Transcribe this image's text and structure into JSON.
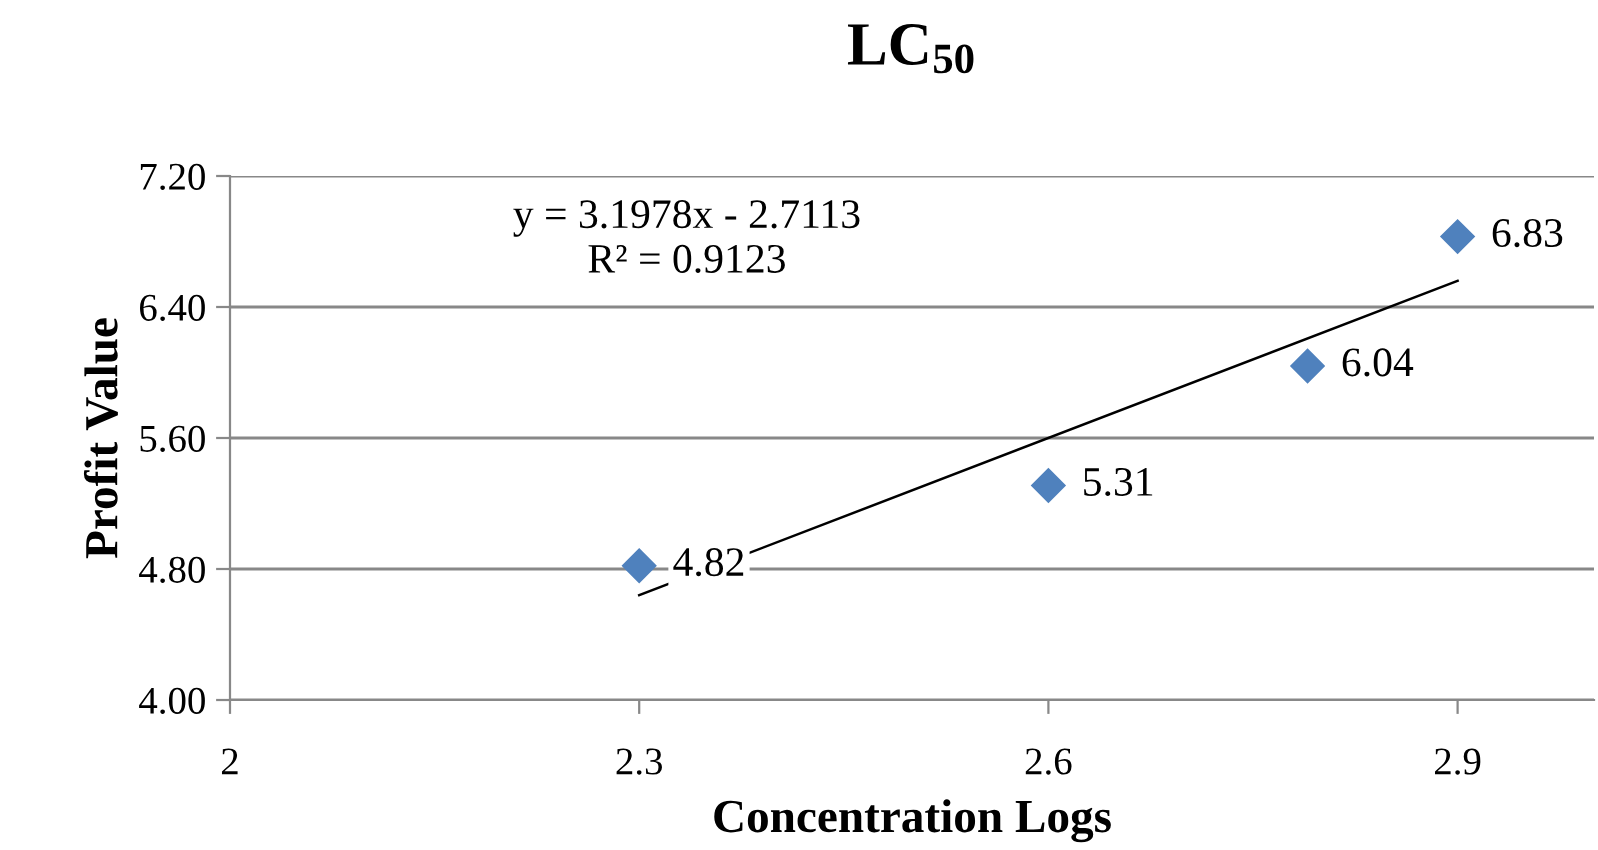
{
  "chart_data": {
    "type": "scatter",
    "title": "LC$_{50}$",
    "xlabel": "Concentration Logs",
    "ylabel": "Profit Value",
    "series": [
      {
        "color": "#4f81bd",
        "x": [
          2.3,
          2.6,
          2.79,
          2.9
        ],
        "values": [
          4.82,
          5.31,
          6.04,
          6.83
        ],
        "marker": "diamond",
        "data_labels": true
      },
      {
        "type": "line",
        "color": "#000000",
        "x": [
          2.3,
          2.9
        ],
        "values": [
          4.64,
          6.56
        ],
        "marker": "none",
        "line_style": "solid"
      }
    ],
    "annotations": [
      "y = 3.1978x - 2.7113",
      "R² = 0.9123"
    ],
    "xlim": [
      2,
      3.0
    ],
    "xticks": [
      2,
      2.3,
      2.6,
      2.9
    ],
    "ylim": [
      4.0,
      7.2
    ],
    "yticks": [
      {
        "value": 4.0,
        "label": "4.00"
      },
      {
        "value": 4.8,
        "label": "4.80"
      },
      {
        "value": 5.6,
        "label": "5.60"
      },
      {
        "value": 6.4,
        "label": "6.40"
      },
      {
        "value": 7.2,
        "label": "7.20"
      }
    ],
    "grid": "y",
    "legend": false
  }
}
